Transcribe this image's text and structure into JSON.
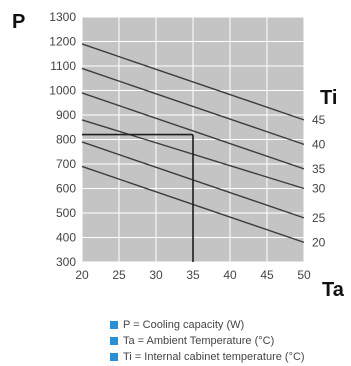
{
  "chart_data": {
    "type": "line",
    "xlabel": "Ta",
    "ylabel": "P",
    "series_axis_label": "Ti",
    "xlim": [
      20,
      50
    ],
    "ylim": [
      300,
      1300
    ],
    "x_ticks": [
      20,
      25,
      30,
      35,
      40,
      45,
      50
    ],
    "y_ticks": [
      300,
      400,
      500,
      600,
      700,
      800,
      900,
      1000,
      1100,
      1200,
      1300
    ],
    "grid": true,
    "series": [
      {
        "name": "45",
        "x": [
          20,
          50
        ],
        "y": [
          1190,
          880
        ]
      },
      {
        "name": "40",
        "x": [
          20,
          50
        ],
        "y": [
          1090,
          780
        ]
      },
      {
        "name": "35",
        "x": [
          20,
          50
        ],
        "y": [
          990,
          680
        ]
      },
      {
        "name": "30",
        "x": [
          20,
          50
        ],
        "y": [
          880,
          600
        ]
      },
      {
        "name": "25",
        "x": [
          20,
          50
        ],
        "y": [
          790,
          480
        ]
      },
      {
        "name": "20",
        "x": [
          20,
          50
        ],
        "y": [
          690,
          380
        ]
      }
    ],
    "guide": {
      "x": 35,
      "y": 820
    },
    "colors": {
      "plot_bg": "#c4c4c4",
      "grid": "#ffffff",
      "line": "#3c3c3c",
      "accent": "#2a8fd0"
    }
  },
  "legend": [
    {
      "text": "P = Cooling capacity (W)"
    },
    {
      "text": "Ta = Ambient Temperature (°C)"
    },
    {
      "text": "Ti = Internal cabinet temperature (°C)"
    }
  ]
}
